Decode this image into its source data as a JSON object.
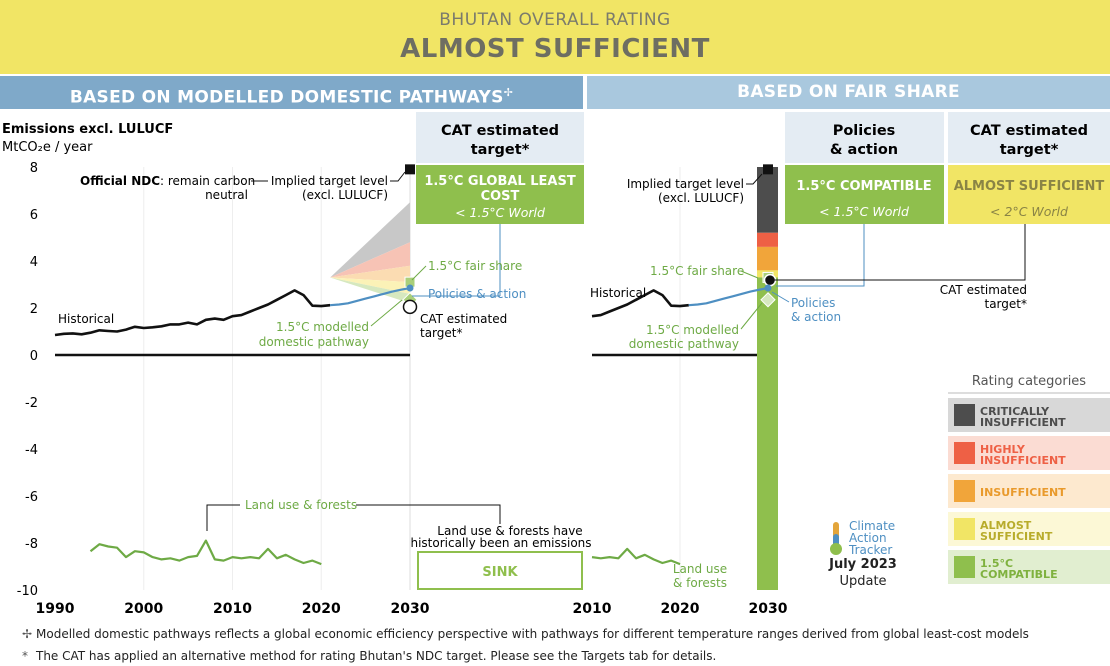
{
  "header": {
    "rating_title": "BHUTAN OVERALL RATING",
    "rating_value": "ALMOST SUFFICIENT"
  },
  "bands": {
    "left": "BASED ON MODELLED DOMESTIC PATHWAYS",
    "left_symbol": "✢",
    "right": "BASED ON FAIR SHARE"
  },
  "axis": {
    "ylabel_line1": "Emissions excl. LULUCF",
    "ylabel_line2": "MtCO₂e / year"
  },
  "boxes": {
    "cat_left_title": "CAT estimated target*",
    "cat_left_rating": "1.5°C GLOBAL LEAST COST",
    "cat_left_world": "< 1.5°C World",
    "policies_title": "Policies & action",
    "policies_rating": "1.5°C COMPATIBLE",
    "policies_world": "< 1.5°C World",
    "cat_right_title": "CAT estimated target*",
    "cat_right_rating": "ALMOST SUFFICIENT",
    "cat_right_world": "< 2°C World",
    "sink": "SINK"
  },
  "annotations": {
    "official_ndc_bold": "Official NDC",
    "official_ndc_rest": ": remain carbon",
    "official_ndc_line2": "neutral",
    "implied_line1": "Implied target level",
    "implied_line2": "(excl. LULUCF)",
    "historical": "Historical",
    "fair_share": "1.5°C fair share",
    "policies_action": "Policies & action",
    "policies_line1": "Policies",
    "policies_line2": "& action",
    "cat_est_line1": "CAT estimated",
    "cat_est_line2": "target*",
    "modelled_line1": "1.5°C modelled",
    "modelled_line2": "domestic pathway",
    "land_use": "Land use & forests",
    "land_use_line1": "Land use",
    "land_use_line2": "& forests",
    "sink_note_line1": "Land use & forests have",
    "sink_note_line2": "historically been an emissions"
  },
  "legend": {
    "title": "Rating categories",
    "items": [
      {
        "line1": "CRITICALLY",
        "line2": "INSUFFICIENT",
        "color": "#4d4d4d",
        "bg": "#d8d8d8",
        "text": "#4d4d4d"
      },
      {
        "line1": "HIGHLY",
        "line2": "INSUFFICIENT",
        "color": "#ee6045",
        "bg": "#fbdcd3",
        "text": "#ee6045"
      },
      {
        "line1": "INSUFFICIENT",
        "line2": "",
        "color": "#f1a53a",
        "bg": "#fde9cf",
        "text": "#e99a2c"
      },
      {
        "line1": "ALMOST",
        "line2": "SUFFICIENT",
        "color": "#f1e565",
        "bg": "#fcf8d6",
        "text": "#b8ac2c"
      },
      {
        "line1": "1.5°C",
        "line2": "COMPATIBLE",
        "color": "#8fbf4d",
        "bg": "#e1eed0",
        "text": "#7fb13f"
      }
    ]
  },
  "brand": {
    "name_line1": "Climate",
    "name_line2": "Action",
    "name_line3": "Tracker",
    "date": "July 2023",
    "update": "Update"
  },
  "footnotes": [
    {
      "symbol": "✢",
      "text": "Modelled domestic pathways reflects a global economic efficiency perspective with pathways for different temperature ranges derived from global least-cost models"
    },
    {
      "symbol": "*",
      "text": "The CAT has applied an alternative method for rating Bhutan's NDC target. Please see the Targets tab for details."
    }
  ],
  "chart_data": [
    {
      "type": "line",
      "panel": "modelled domestic pathways",
      "ylabel": "Emissions excl. LULUCF, MtCO₂e / year",
      "ylim": [
        -10,
        8
      ],
      "yticks": [
        8,
        6,
        4,
        2,
        0,
        -2,
        -4,
        -6,
        -8,
        -10
      ],
      "xlim": [
        1990,
        2030
      ],
      "xticks": [
        1990,
        2000,
        2010,
        2020,
        2030
      ],
      "series": [
        {
          "name": "Historical",
          "color": "#111111",
          "x": [
            1990,
            1991,
            1992,
            1993,
            1994,
            1995,
            1996,
            1997,
            1998,
            1999,
            2000,
            2001,
            2002,
            2003,
            2004,
            2005,
            2006,
            2007,
            2008,
            2009,
            2010,
            2011,
            2012,
            2013,
            2014,
            2015,
            2016,
            2017,
            2018,
            2019,
            2020,
            2021
          ],
          "y": [
            0.85,
            0.9,
            0.92,
            0.88,
            0.95,
            1.05,
            1.02,
            1.0,
            1.08,
            1.2,
            1.15,
            1.18,
            1.22,
            1.3,
            1.3,
            1.38,
            1.3,
            1.5,
            1.55,
            1.5,
            1.65,
            1.7,
            1.85,
            2.0,
            2.15,
            2.35,
            2.55,
            2.75,
            2.55,
            2.1,
            2.08,
            2.12
          ]
        },
        {
          "name": "Policies & action",
          "color": "#4e8fc2",
          "x": [
            2021,
            2022,
            2023,
            2024,
            2025,
            2026,
            2027,
            2028,
            2029,
            2030
          ],
          "y": [
            2.12,
            2.15,
            2.2,
            2.3,
            2.4,
            2.5,
            2.6,
            2.7,
            2.78,
            2.85
          ]
        },
        {
          "name": "Land use & forests",
          "color": "#6eaa45",
          "x": [
            1994,
            1995,
            1996,
            1997,
            1998,
            1999,
            2000,
            2001,
            2002,
            2003,
            2004,
            2005,
            2006,
            2007,
            2008,
            2009,
            2010,
            2011,
            2012,
            2013,
            2014,
            2015,
            2016,
            2017,
            2018,
            2019,
            2020
          ],
          "y": [
            -8.35,
            -8.05,
            -8.15,
            -8.2,
            -8.6,
            -8.35,
            -8.4,
            -8.6,
            -8.7,
            -8.65,
            -8.75,
            -8.6,
            -8.55,
            -7.9,
            -8.7,
            -8.75,
            -8.6,
            -8.65,
            -8.6,
            -8.65,
            -8.25,
            -8.65,
            -8.5,
            -8.7,
            -8.85,
            -8.75,
            -8.9
          ]
        }
      ],
      "ranges_2030": [
        {
          "name": "Critically insufficient",
          "from": [
            3.3,
            3.3
          ],
          "to": [
            6.5,
            4.8
          ],
          "color": "#c8c8c8"
        },
        {
          "name": "Highly insufficient",
          "from": [
            3.3,
            3.3
          ],
          "to": [
            4.8,
            3.8
          ],
          "color": "#f7c3b5"
        },
        {
          "name": "Insufficient",
          "from": [
            3.3,
            3.3
          ],
          "to": [
            3.8,
            3.1
          ],
          "color": "#fbdcb2"
        },
        {
          "name": "Almost sufficient",
          "from": [
            3.3,
            3.3
          ],
          "to": [
            3.1,
            2.6
          ],
          "color": "#fbf2b7"
        },
        {
          "name": "1.5°C compatible",
          "from": [
            3.3,
            3.3
          ],
          "to": [
            2.6,
            2.2
          ],
          "color": "#d6e8bf"
        }
      ],
      "points": [
        {
          "name": "Implied target level (excl. LULUCF)",
          "x": 2030,
          "y": 7.9
        },
        {
          "name": "1.5°C fair share",
          "x": 2030,
          "y": 3.1
        },
        {
          "name": "CAT estimated target*",
          "x": 2030,
          "y": 2.05
        },
        {
          "name": "1.5°C modelled domestic pathway",
          "x": 2030,
          "y": 2.35
        }
      ]
    },
    {
      "type": "line",
      "panel": "fair share",
      "ylim": [
        -10,
        8
      ],
      "xlim": [
        2010,
        2030
      ],
      "xticks": [
        2010,
        2020,
        2030
      ],
      "series": [
        {
          "name": "Historical",
          "color": "#111111",
          "x": [
            2010,
            2011,
            2012,
            2013,
            2014,
            2015,
            2016,
            2017,
            2018,
            2019,
            2020,
            2021
          ],
          "y": [
            1.65,
            1.7,
            1.85,
            2.0,
            2.15,
            2.35,
            2.55,
            2.75,
            2.55,
            2.1,
            2.08,
            2.12
          ]
        },
        {
          "name": "Policies & action",
          "color": "#4e8fc2",
          "x": [
            2021,
            2022,
            2023,
            2024,
            2025,
            2026,
            2027,
            2028,
            2029,
            2030
          ],
          "y": [
            2.12,
            2.15,
            2.2,
            2.3,
            2.4,
            2.5,
            2.6,
            2.7,
            2.78,
            2.85
          ]
        },
        {
          "name": "Land use & forests",
          "color": "#6eaa45",
          "x": [
            2010,
            2011,
            2012,
            2013,
            2014,
            2015,
            2016,
            2017,
            2018,
            2019,
            2020
          ],
          "y": [
            -8.6,
            -8.65,
            -8.6,
            -8.65,
            -8.25,
            -8.65,
            -8.5,
            -8.7,
            -8.85,
            -8.75,
            -8.9
          ]
        }
      ],
      "bar_2030": [
        {
          "name": "Critically insufficient",
          "from": 5.2,
          "to": 8,
          "color": "#4d4d4d"
        },
        {
          "name": "Highly insufficient",
          "from": 4.6,
          "to": 5.2,
          "color": "#ee6045"
        },
        {
          "name": "Insufficient",
          "from": 3.6,
          "to": 4.6,
          "color": "#f1a53a"
        },
        {
          "name": "Almost sufficient",
          "from": 3.3,
          "to": 3.6,
          "color": "#f1e565"
        },
        {
          "name": "1.5°C compatible",
          "from": -10,
          "to": 3.3,
          "color": "#8fbf4d"
        }
      ],
      "points": [
        {
          "name": "Implied target level (excl. LULUCF)",
          "x": 2030,
          "y": 7.9
        },
        {
          "name": "1.5°C fair share",
          "x": 2030,
          "y": 3.3
        },
        {
          "name": "CAT estimated target*",
          "x": 2030,
          "y": 3.1
        },
        {
          "name": "1.5°C modelled domestic pathway",
          "x": 2030,
          "y": 2.35
        }
      ]
    }
  ]
}
